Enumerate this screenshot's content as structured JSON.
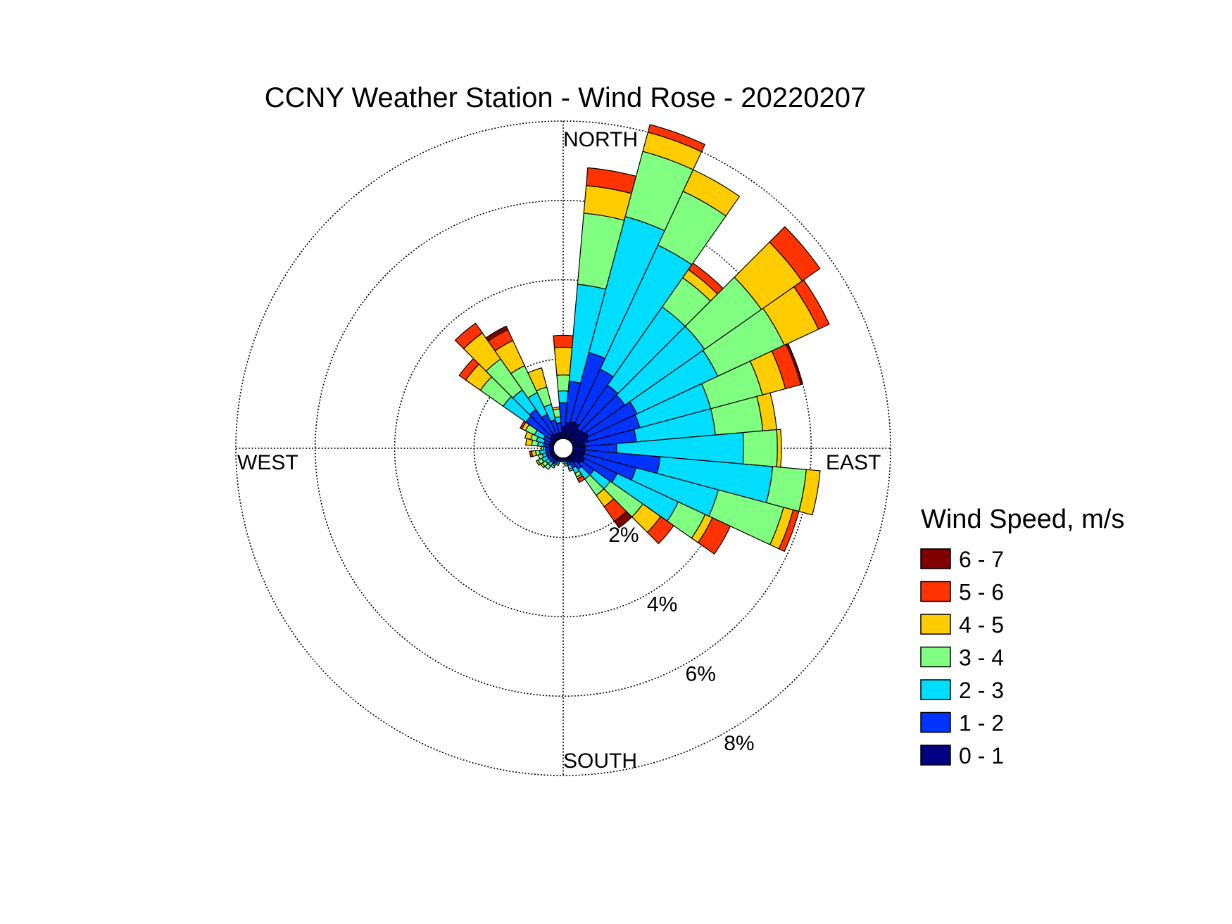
{
  "chart_data": {
    "type": "wind-rose",
    "title": "CCNY Weather Station - Wind Rose - 20220207",
    "compass_labels": {
      "north": "NORTH",
      "east": "EAST",
      "south": "SOUTH",
      "west": "WEST"
    },
    "radial_ticks": [
      {
        "value": 2,
        "label": "2%"
      },
      {
        "value": 4,
        "label": "4%"
      },
      {
        "value": 6,
        "label": "6%"
      },
      {
        "value": 8,
        "label": "8%"
      }
    ],
    "radial_max": 8,
    "grid": true,
    "legend": {
      "title": "Wind Speed, m/s",
      "placement": "right",
      "bins": [
        {
          "label": "6 - 7",
          "color": "#800000"
        },
        {
          "label": "5 - 6",
          "color": "#ff3300"
        },
        {
          "label": "4 - 5",
          "color": "#ffcc00"
        },
        {
          "label": "3 - 4",
          "color": "#80ff80"
        },
        {
          "label": "2 - 3",
          "color": "#00ddff"
        },
        {
          "label": "1 - 2",
          "color": "#0033ff"
        },
        {
          "label": "0 - 1",
          "color": "#000080"
        }
      ]
    },
    "sector_width_deg": 10,
    "bin_order": [
      "0 - 1",
      "1 - 2",
      "2 - 3",
      "3 - 4",
      "4 - 5",
      "5 - 6",
      "6 - 7"
    ],
    "units": "% of observations, cumulative by speed bin",
    "sectors": [
      {
        "dir": 10,
        "cum": [
          0.4,
          1.45,
          3.9,
          5.7,
          6.4,
          6.85,
          6.85
        ]
      },
      {
        "dir": 20,
        "cum": [
          0.45,
          2.25,
          5.8,
          7.5,
          8.0,
          8.2,
          8.2
        ]
      },
      {
        "dir": 30,
        "cum": [
          0.45,
          1.95,
          5.4,
          6.9,
          7.5,
          7.5,
          7.5
        ]
      },
      {
        "dir": 40,
        "cum": [
          0.35,
          1.7,
          4.1,
          5.0,
          5.25,
          5.45,
          5.45
        ]
      },
      {
        "dir": 50,
        "cum": [
          0.4,
          1.65,
          4.1,
          5.85,
          7.1,
          7.65,
          7.65
        ]
      },
      {
        "dir": 60,
        "cum": [
          0.45,
          1.8,
          4.05,
          5.9,
          6.85,
          7.15,
          7.15
        ]
      },
      {
        "dir": 70,
        "cum": [
          0.4,
          1.75,
          3.6,
          4.95,
          5.55,
          5.95,
          6.0
        ]
      },
      {
        "dir": 80,
        "cum": [
          0.3,
          1.6,
          3.6,
          4.8,
          5.15,
          5.15,
          5.15
        ]
      },
      {
        "dir": 90,
        "cum": [
          0.3,
          1.1,
          4.3,
          5.15,
          5.25,
          5.25,
          5.25
        ]
      },
      {
        "dir": 100,
        "cum": [
          0.3,
          2.2,
          5.05,
          5.9,
          6.25,
          6.25,
          6.25
        ]
      },
      {
        "dir": 110,
        "cum": [
          0.3,
          1.65,
          3.8,
          5.5,
          5.75,
          5.9,
          5.9
        ]
      },
      {
        "dir": 120,
        "cum": [
          0.35,
          1.25,
          2.95,
          3.7,
          3.9,
          4.4,
          4.4
        ]
      },
      {
        "dir": 130,
        "cum": [
          0.3,
          0.7,
          1.2,
          2.2,
          2.75,
          3.15,
          3.15
        ]
      },
      {
        "dir": 140,
        "cum": [
          0.2,
          0.4,
          0.7,
          1.2,
          1.55,
          2.0,
          2.2
        ]
      },
      {
        "dir": 150,
        "cum": [
          0.15,
          0.3,
          0.45,
          0.55,
          0.6,
          0.7,
          0.7
        ]
      },
      {
        "dir": 160,
        "cum": [
          0.1,
          0.2,
          0.3,
          0.35,
          0.35,
          0.35,
          0.35
        ]
      },
      {
        "dir": 170,
        "cum": [
          0.05,
          0.1,
          0.15,
          0.2,
          0.2,
          0.2,
          0.2
        ]
      },
      {
        "dir": 180,
        "cum": [
          0.05,
          0.1,
          0.1,
          0.1,
          0.1,
          0.1,
          0.1
        ]
      },
      {
        "dir": 190,
        "cum": [
          0.05,
          0.1,
          0.1,
          0.1,
          0.1,
          0.1,
          0.1
        ]
      },
      {
        "dir": 200,
        "cum": [
          0.05,
          0.1,
          0.15,
          0.2,
          0.2,
          0.2,
          0.2
        ]
      },
      {
        "dir": 210,
        "cum": [
          0.1,
          0.2,
          0.25,
          0.3,
          0.3,
          0.3,
          0.3
        ]
      },
      {
        "dir": 220,
        "cum": [
          0.1,
          0.2,
          0.3,
          0.4,
          0.4,
          0.4,
          0.4
        ]
      },
      {
        "dir": 230,
        "cum": [
          0.1,
          0.2,
          0.3,
          0.4,
          0.45,
          0.45,
          0.45
        ]
      },
      {
        "dir": 240,
        "cum": [
          0.1,
          0.2,
          0.35,
          0.45,
          0.5,
          0.5,
          0.5
        ]
      },
      {
        "dir": 250,
        "cum": [
          0.1,
          0.2,
          0.3,
          0.4,
          0.4,
          0.4,
          0.4
        ]
      },
      {
        "dir": 260,
        "cum": [
          0.1,
          0.2,
          0.35,
          0.45,
          0.55,
          0.6,
          0.6
        ]
      },
      {
        "dir": 270,
        "cum": [
          0.1,
          0.2,
          0.25,
          0.3,
          0.3,
          0.3,
          0.3
        ]
      },
      {
        "dir": 280,
        "cum": [
          0.1,
          0.25,
          0.4,
          0.55,
          0.7,
          0.7,
          0.7
        ]
      },
      {
        "dir": 290,
        "cum": [
          0.1,
          0.25,
          0.45,
          0.6,
          0.75,
          0.75,
          0.75
        ]
      },
      {
        "dir": 300,
        "cum": [
          0.1,
          0.3,
          0.55,
          0.8,
          0.9,
          0.95,
          0.95
        ]
      },
      {
        "dir": 310,
        "cum": [
          0.15,
          0.9,
          1.6,
          2.3,
          2.75,
          2.95,
          2.95
        ]
      },
      {
        "dir": 320,
        "cum": [
          0.2,
          0.95,
          1.55,
          2.5,
          3.3,
          3.6,
          3.6
        ]
      },
      {
        "dir": 330,
        "cum": [
          0.15,
          0.7,
          1.3,
          2.05,
          2.75,
          3.05,
          3.15
        ]
      },
      {
        "dir": 340,
        "cum": [
          0.15,
          0.5,
          0.9,
          1.35,
          1.85,
          1.85,
          1.85
        ]
      },
      {
        "dir": 350,
        "cum": [
          0.15,
          0.4,
          0.55,
          0.75,
          0.8,
          0.8,
          0.8
        ]
      },
      {
        "dir": 360,
        "cum": [
          0.3,
          0.9,
          1.2,
          1.6,
          2.3,
          2.6,
          2.6
        ]
      }
    ]
  }
}
